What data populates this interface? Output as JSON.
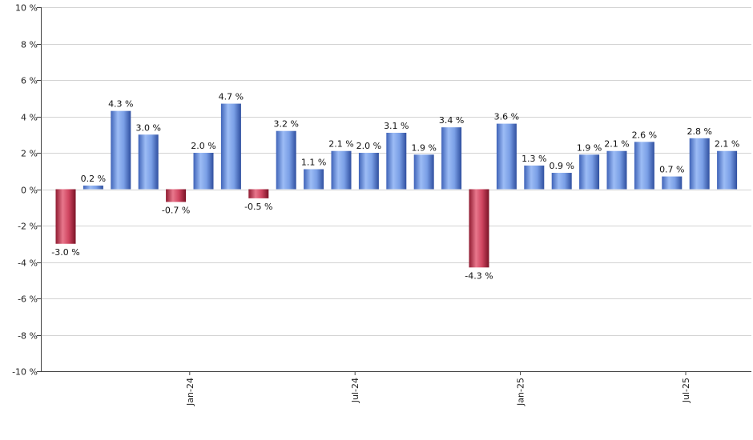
{
  "chart_data": {
    "type": "bar",
    "title": "",
    "xlabel": "",
    "ylabel": "",
    "ylim": [
      -10,
      10
    ],
    "yticks": [
      10,
      8,
      6,
      4,
      2,
      0,
      -2,
      -4,
      -6,
      -8,
      -10
    ],
    "ytick_labels": [
      "10 %",
      "8 %",
      "6 %",
      "4 %",
      "2 %",
      "0 %",
      "-2 %",
      "-4 %",
      "-6 %",
      "-8 %",
      "-10 %"
    ],
    "grid": true,
    "positive_color": "#6f95e0",
    "negative_color": "#c8324f",
    "x_tick_labels": [
      {
        "label": "Jan-24",
        "index": 4
      },
      {
        "label": "Jul-24",
        "index": 10
      },
      {
        "label": "Jan-25",
        "index": 16
      },
      {
        "label": "Jul-25",
        "index": 22
      }
    ],
    "values": [
      -3.0,
      0.2,
      4.3,
      3.0,
      -0.7,
      2.0,
      4.7,
      -0.5,
      3.2,
      1.1,
      2.1,
      2.0,
      3.1,
      1.9,
      3.4,
      -4.3,
      3.6,
      1.3,
      0.9,
      1.9,
      2.1,
      2.6,
      0.7,
      2.8,
      2.1
    ],
    "labels": [
      "-3.0 %",
      "0.2 %",
      "4.3 %",
      "3.0 %",
      "-0.7 %",
      "2.0 %",
      "4.7 %",
      "-0.5 %",
      "3.2 %",
      "1.1 %",
      "2.1 %",
      "2.0 %",
      "3.1 %",
      "1.9 %",
      "3.4 %",
      "-4.3 %",
      "3.6 %",
      "1.3 %",
      "0.9 %",
      "1.9 %",
      "2.1 %",
      "2.6 %",
      "0.7 %",
      "2.8 %",
      "2.1 %"
    ]
  }
}
